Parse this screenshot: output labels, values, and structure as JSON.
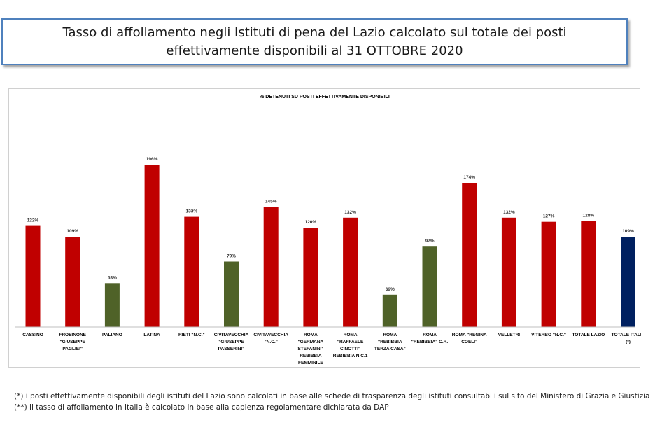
{
  "header": {
    "title_line1": "Tasso di affollamento negli Istituti di pena del Lazio calcolato sul totale dei posti",
    "title_line2": "effettivamente disponibili al 31 OTTOBRE 2020"
  },
  "chart_data": {
    "type": "bar",
    "title": "% DETENUTI SU POSTI EFFETTIVAMENTE DISPONIBILI",
    "categories": [
      [
        "CASSINO"
      ],
      [
        "FROSINONE",
        "\"GIUSEPPE",
        "PAGLIEI\""
      ],
      [
        "PALIANO"
      ],
      [
        "LATINA"
      ],
      [
        "RIETI \"N.C.\""
      ],
      [
        "CIVITAVECCHIA",
        "\"GIUSEPPE",
        "PASSERINI\""
      ],
      [
        "CIVITAVECCHIA",
        "\"N.C.\""
      ],
      [
        "ROMA",
        "\"GERMANA",
        "STEFANINI\"",
        "REBIBBIA",
        "FEMMINILE"
      ],
      [
        "ROMA",
        "\"RAFFAELE",
        "CINOTTI\"",
        "REBIBBIA N.C.1"
      ],
      [
        "ROMA",
        "\"REBIBBIA",
        "TERZA CASA\""
      ],
      [
        "ROMA",
        "\"REBIBBIA\" C.R."
      ],
      [
        "ROMA \"REGINA",
        "COELI\""
      ],
      [
        "VELLETRI"
      ],
      [
        "VITERBO \"N.C.\""
      ],
      [
        "TOTALE LAZIO"
      ],
      [
        "TOTALE ITALIA",
        "(*)"
      ]
    ],
    "values": [
      122,
      109,
      53,
      196,
      133,
      79,
      145,
      120,
      132,
      39,
      97,
      174,
      132,
      127,
      128,
      109
    ],
    "value_labels": [
      "122%",
      "109%",
      "53%",
      "196%",
      "133%",
      "79%",
      "145%",
      "120%",
      "132%",
      "39%",
      "97%",
      "174%",
      "132%",
      "127%",
      "128%",
      "109%"
    ],
    "colors": [
      "#c00000",
      "#c00000",
      "#4f6228",
      "#c00000",
      "#c00000",
      "#4f6228",
      "#c00000",
      "#c00000",
      "#c00000",
      "#4f6228",
      "#4f6228",
      "#c00000",
      "#c00000",
      "#c00000",
      "#c00000",
      "#002060"
    ],
    "ylim": [
      0,
      200
    ],
    "grid": false,
    "legend": "none"
  },
  "footnotes": {
    "note1": "(*) i posti effettivamente disponibili  degli istituti del Lazio sono calcolati in base alle schede di trasparenza degli istituti consultabili sul sito del Ministero di Grazia e Giustizia",
    "note2": "(**) il tasso di affollamento in Italia è calcolato in base alla capienza regolamentare dichiarata da DAP"
  }
}
